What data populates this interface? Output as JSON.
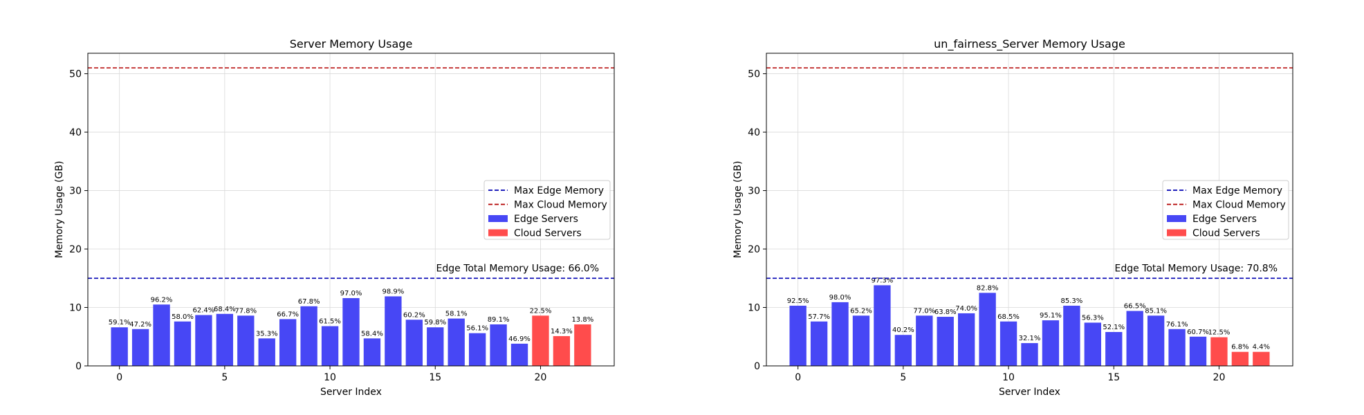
{
  "colors": {
    "edge_bar": "#4747F5",
    "cloud_bar": "#FF4C4C",
    "edge_line": "#0000B3",
    "cloud_line": "#B30000",
    "grid": "#d9d9d9"
  },
  "chart_data": [
    {
      "type": "bar",
      "title": "Server Memory Usage",
      "xlabel": "Server Index",
      "ylabel": "Memory Usage (GB)",
      "xlim": [
        -1.5,
        23.5
      ],
      "ylim": [
        0,
        53.5
      ],
      "xticks": [
        0,
        5,
        10,
        15,
        20
      ],
      "yticks": [
        0,
        10,
        20,
        30,
        40,
        50
      ],
      "grid": true,
      "legend_position": "center-right",
      "legend": [
        "Max Edge Memory",
        "Max Cloud Memory",
        "Edge Servers",
        "Cloud Servers"
      ],
      "max_edge_memory": 15,
      "max_cloud_memory": 51,
      "annotation": "Edge Total Memory Usage: 66.0%",
      "x": [
        0,
        1,
        2,
        3,
        4,
        5,
        6,
        7,
        8,
        9,
        10,
        11,
        12,
        13,
        14,
        15,
        16,
        17,
        18,
        19,
        20,
        21,
        22
      ],
      "values": [
        6.6,
        6.3,
        10.5,
        7.6,
        8.7,
        8.9,
        8.6,
        4.7,
        8.0,
        10.2,
        6.8,
        11.6,
        4.7,
        11.9,
        7.9,
        6.6,
        8.1,
        5.6,
        7.1,
        3.8,
        8.6,
        5.1,
        7.1
      ],
      "labels": [
        "59.1%",
        "47.2%",
        "96.2%",
        "58.0%",
        "62.4%",
        "68.4%",
        "77.8%",
        "35.3%",
        "66.7%",
        "67.8%",
        "61.5%",
        "97.0%",
        "58.4%",
        "98.9%",
        "60.2%",
        "59.8%",
        "58.1%",
        "56.1%",
        "89.1%",
        "46.9%",
        "22.5%",
        "14.3%",
        "13.8%"
      ],
      "kind": [
        "edge",
        "edge",
        "edge",
        "edge",
        "edge",
        "edge",
        "edge",
        "edge",
        "edge",
        "edge",
        "edge",
        "edge",
        "edge",
        "edge",
        "edge",
        "edge",
        "edge",
        "edge",
        "edge",
        "edge",
        "cloud",
        "cloud",
        "cloud"
      ]
    },
    {
      "type": "bar",
      "title": "un_fairness_Server Memory Usage",
      "xlabel": "Server Index",
      "ylabel": "Memory Usage (GB)",
      "xlim": [
        -1.5,
        23.5
      ],
      "ylim": [
        0,
        53.5
      ],
      "xticks": [
        0,
        5,
        10,
        15,
        20
      ],
      "yticks": [
        0,
        10,
        20,
        30,
        40,
        50
      ],
      "grid": true,
      "legend_position": "center-right",
      "legend": [
        "Max Edge Memory",
        "Max Cloud Memory",
        "Edge Servers",
        "Cloud Servers"
      ],
      "max_edge_memory": 15,
      "max_cloud_memory": 51,
      "annotation": "Edge Total Memory Usage: 70.8%",
      "x": [
        0,
        1,
        2,
        3,
        4,
        5,
        6,
        7,
        8,
        9,
        10,
        11,
        12,
        13,
        14,
        15,
        16,
        17,
        18,
        19,
        20,
        21,
        22
      ],
      "values": [
        10.3,
        7.6,
        10.9,
        8.6,
        13.8,
        5.3,
        8.6,
        8.4,
        9.0,
        12.5,
        7.6,
        3.9,
        7.8,
        10.3,
        7.4,
        5.8,
        9.4,
        8.6,
        6.3,
        5.0,
        4.9,
        2.4,
        2.4
      ],
      "labels": [
        "92.5%",
        "57.7%",
        "98.0%",
        "65.2%",
        "97.3%",
        "40.2%",
        "77.0%",
        "63.8%",
        "74.0%",
        "82.8%",
        "68.5%",
        "32.1%",
        "95.1%",
        "85.3%",
        "56.3%",
        "52.1%",
        "66.5%",
        "85.1%",
        "76.1%",
        "60.7%",
        "12.5%",
        "6.8%",
        "4.4%"
      ],
      "kind": [
        "edge",
        "edge",
        "edge",
        "edge",
        "edge",
        "edge",
        "edge",
        "edge",
        "edge",
        "edge",
        "edge",
        "edge",
        "edge",
        "edge",
        "edge",
        "edge",
        "edge",
        "edge",
        "edge",
        "edge",
        "cloud",
        "cloud",
        "cloud"
      ]
    }
  ]
}
